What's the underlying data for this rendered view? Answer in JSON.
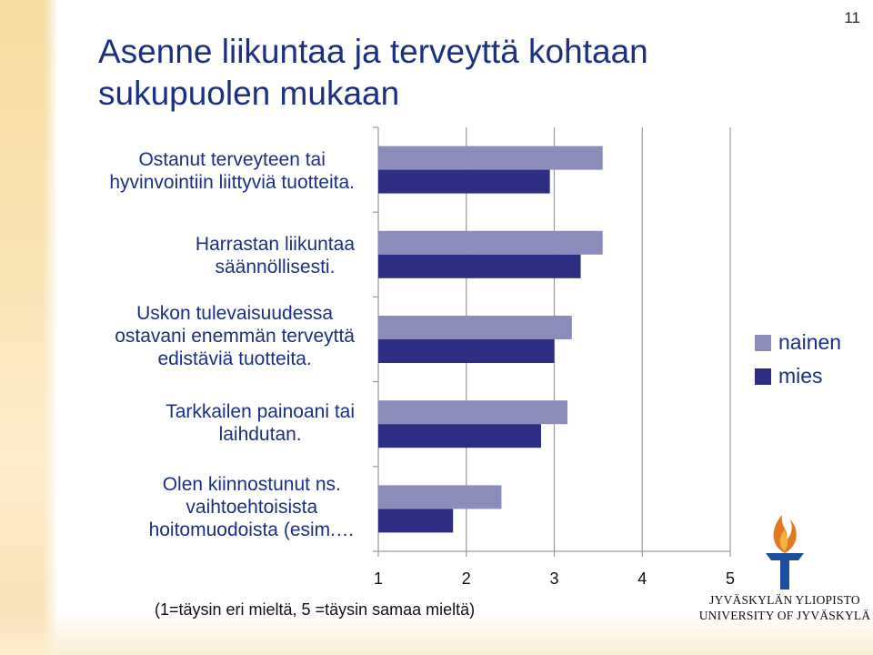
{
  "page_number": "11",
  "title": "Asenne liikuntaa ja terveyttä kohtaan sukupuolen mukaan",
  "note": "(1=täysin eri mieltä, 5 =täysin samaa mieltä)",
  "logo": {
    "line1": "JYVÄSKYLÄN YLIOPISTO",
    "line2": "UNIVERSITY OF JYVÄSKYLÄ"
  },
  "colors": {
    "nainen": "#8b8cbb",
    "mies": "#2d2e83",
    "axis": "#9a9a9a",
    "title": "#1b2f84"
  },
  "chart_data": {
    "type": "bar",
    "orientation": "horizontal",
    "categories": [
      "Ostanut terveyteen tai hyvinvointiin liittyviä tuotteita.",
      "Harrastan liikuntaa säännöllisesti.",
      "Uskon tulevaisuudessa ostavani enemmän terveyttä edistäviä tuotteita.",
      "Tarkkailen painoani tai laihdutan.",
      "Olen kiinnostunut ns. vaihtoehtoisista hoitomuodoista (esim.…"
    ],
    "category_lines": [
      [
        "Ostanut terveyteen tai",
        "hyvinvointiin liittyviä tuotteita."
      ],
      [
        "Harrastan liikuntaa",
        "säännöllisesti."
      ],
      [
        "Uskon tulevaisuudessa",
        "ostavani enemmän terveyttä",
        "edistäviä tuotteita."
      ],
      [
        "Tarkkailen painoani tai",
        "laihdutan."
      ],
      [
        "Olen kiinnostunut ns.",
        "vaihtoehtoisista",
        "hoitomuodoista (esim.…"
      ]
    ],
    "series": [
      {
        "name": "nainen",
        "values": [
          3.55,
          3.55,
          3.2,
          3.15,
          2.4
        ]
      },
      {
        "name": "mies",
        "values": [
          2.95,
          3.3,
          3.0,
          2.85,
          1.85
        ]
      }
    ],
    "xlim": [
      1,
      5
    ],
    "xticks": [
      "1",
      "2",
      "3",
      "4",
      "5"
    ],
    "grid": true,
    "legend_position": "right",
    "xlabel": "",
    "ylabel": ""
  }
}
